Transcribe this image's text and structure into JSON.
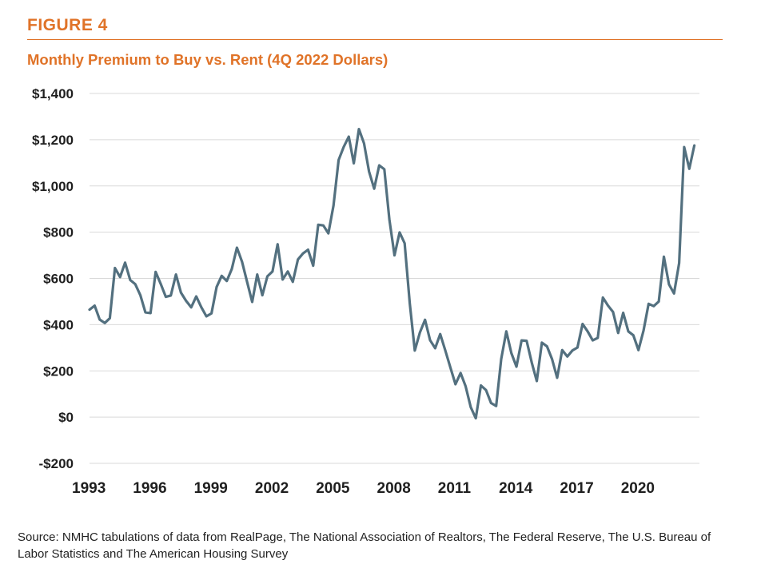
{
  "figure_label": "FIGURE 4",
  "source_note": "Source: NMHC tabulations of data from RealPage, The National Association of Realtors, The Federal Reserve, The U.S. Bureau of Labor Statistics and The American Housing Survey",
  "colors": {
    "accent": "#e07328",
    "line": "#53707f",
    "grid": "#d9d9d9",
    "text": "#1f1f1f"
  },
  "chart_data": {
    "type": "line",
    "title": "Monthly Premium to Buy vs. Rent (4Q 2022 Dollars)",
    "xlabel": "",
    "ylabel": "",
    "ylim": [
      -200,
      1400
    ],
    "xlim": [
      1993.0,
      2023.0
    ],
    "grid": "horizontal",
    "legend": "none",
    "y_ticks": [
      {
        "value": -200,
        "label": "-$200"
      },
      {
        "value": 0,
        "label": "$0"
      },
      {
        "value": 200,
        "label": "$200"
      },
      {
        "value": 400,
        "label": "$400"
      },
      {
        "value": 600,
        "label": "$600"
      },
      {
        "value": 800,
        "label": "$800"
      },
      {
        "value": 1000,
        "label": "$1,000"
      },
      {
        "value": 1200,
        "label": "$1,200"
      },
      {
        "value": 1400,
        "label": "$1,400"
      }
    ],
    "x_ticks": [
      {
        "value": 1993,
        "label": "1993"
      },
      {
        "value": 1996,
        "label": "1996"
      },
      {
        "value": 1999,
        "label": "1999"
      },
      {
        "value": 2002,
        "label": "2002"
      },
      {
        "value": 2005,
        "label": "2005"
      },
      {
        "value": 2008,
        "label": "2008"
      },
      {
        "value": 2011,
        "label": "2011"
      },
      {
        "value": 2014,
        "label": "2014"
      },
      {
        "value": 2017,
        "label": "2017"
      },
      {
        "value": 2020,
        "label": "2020"
      }
    ],
    "series": [
      {
        "values": [
          [
            1993.0,
            465
          ],
          [
            1993.25,
            482
          ],
          [
            1993.5,
            422
          ],
          [
            1993.75,
            407
          ],
          [
            1994.0,
            428
          ],
          [
            1994.25,
            645
          ],
          [
            1994.5,
            606
          ],
          [
            1994.75,
            668
          ],
          [
            1995.0,
            593
          ],
          [
            1995.25,
            575
          ],
          [
            1995.5,
            527
          ],
          [
            1995.75,
            453
          ],
          [
            1996.0,
            450
          ],
          [
            1996.25,
            628
          ],
          [
            1996.5,
            577
          ],
          [
            1996.75,
            520
          ],
          [
            1997.0,
            526
          ],
          [
            1997.25,
            617
          ],
          [
            1997.5,
            538
          ],
          [
            1997.75,
            503
          ],
          [
            1998.0,
            475
          ],
          [
            1998.25,
            522
          ],
          [
            1998.5,
            475
          ],
          [
            1998.75,
            436
          ],
          [
            1999.0,
            449
          ],
          [
            1999.25,
            563
          ],
          [
            1999.5,
            611
          ],
          [
            1999.75,
            589
          ],
          [
            2000.0,
            641
          ],
          [
            2000.25,
            733
          ],
          [
            2000.5,
            672
          ],
          [
            2000.75,
            585
          ],
          [
            2001.0,
            498
          ],
          [
            2001.25,
            617
          ],
          [
            2001.5,
            527
          ],
          [
            2001.75,
            609
          ],
          [
            2002.0,
            630
          ],
          [
            2002.25,
            748
          ],
          [
            2002.5,
            595
          ],
          [
            2002.75,
            630
          ],
          [
            2003.0,
            585
          ],
          [
            2003.25,
            682
          ],
          [
            2003.5,
            708
          ],
          [
            2003.75,
            724
          ],
          [
            2004.0,
            655
          ],
          [
            2004.25,
            832
          ],
          [
            2004.5,
            829
          ],
          [
            2004.75,
            795
          ],
          [
            2005.0,
            915
          ],
          [
            2005.25,
            1112
          ],
          [
            2005.5,
            1168
          ],
          [
            2005.75,
            1213
          ],
          [
            2006.0,
            1098
          ],
          [
            2006.25,
            1246
          ],
          [
            2006.5,
            1184
          ],
          [
            2006.75,
            1062
          ],
          [
            2007.0,
            988
          ],
          [
            2007.25,
            1089
          ],
          [
            2007.5,
            1072
          ],
          [
            2007.75,
            855
          ],
          [
            2008.0,
            700
          ],
          [
            2008.25,
            799
          ],
          [
            2008.5,
            752
          ],
          [
            2008.75,
            493
          ],
          [
            2009.0,
            288
          ],
          [
            2009.25,
            366
          ],
          [
            2009.5,
            421
          ],
          [
            2009.75,
            333
          ],
          [
            2010.0,
            298
          ],
          [
            2010.25,
            359
          ],
          [
            2010.5,
            288
          ],
          [
            2010.75,
            215
          ],
          [
            2011.0,
            142
          ],
          [
            2011.25,
            191
          ],
          [
            2011.5,
            133
          ],
          [
            2011.75,
            43
          ],
          [
            2012.0,
            -5
          ],
          [
            2012.25,
            137
          ],
          [
            2012.5,
            117
          ],
          [
            2012.75,
            61
          ],
          [
            2013.0,
            48
          ],
          [
            2013.25,
            251
          ],
          [
            2013.5,
            371
          ],
          [
            2013.75,
            277
          ],
          [
            2014.0,
            218
          ],
          [
            2014.25,
            332
          ],
          [
            2014.5,
            330
          ],
          [
            2014.75,
            236
          ],
          [
            2015.0,
            156
          ],
          [
            2015.25,
            322
          ],
          [
            2015.5,
            306
          ],
          [
            2015.75,
            251
          ],
          [
            2016.0,
            170
          ],
          [
            2016.25,
            290
          ],
          [
            2016.5,
            262
          ],
          [
            2016.75,
            288
          ],
          [
            2017.0,
            301
          ],
          [
            2017.25,
            403
          ],
          [
            2017.5,
            371
          ],
          [
            2017.75,
            332
          ],
          [
            2018.0,
            343
          ],
          [
            2018.25,
            517
          ],
          [
            2018.5,
            483
          ],
          [
            2018.75,
            455
          ],
          [
            2019.0,
            364
          ],
          [
            2019.25,
            451
          ],
          [
            2019.5,
            371
          ],
          [
            2019.75,
            354
          ],
          [
            2020.0,
            290
          ],
          [
            2020.25,
            375
          ],
          [
            2020.5,
            490
          ],
          [
            2020.75,
            480
          ],
          [
            2021.0,
            500
          ],
          [
            2021.25,
            694
          ],
          [
            2021.5,
            574
          ],
          [
            2021.75,
            535
          ],
          [
            2022.0,
            666
          ],
          [
            2022.25,
            1168
          ],
          [
            2022.5,
            1074
          ],
          [
            2022.75,
            1175
          ]
        ]
      }
    ]
  }
}
